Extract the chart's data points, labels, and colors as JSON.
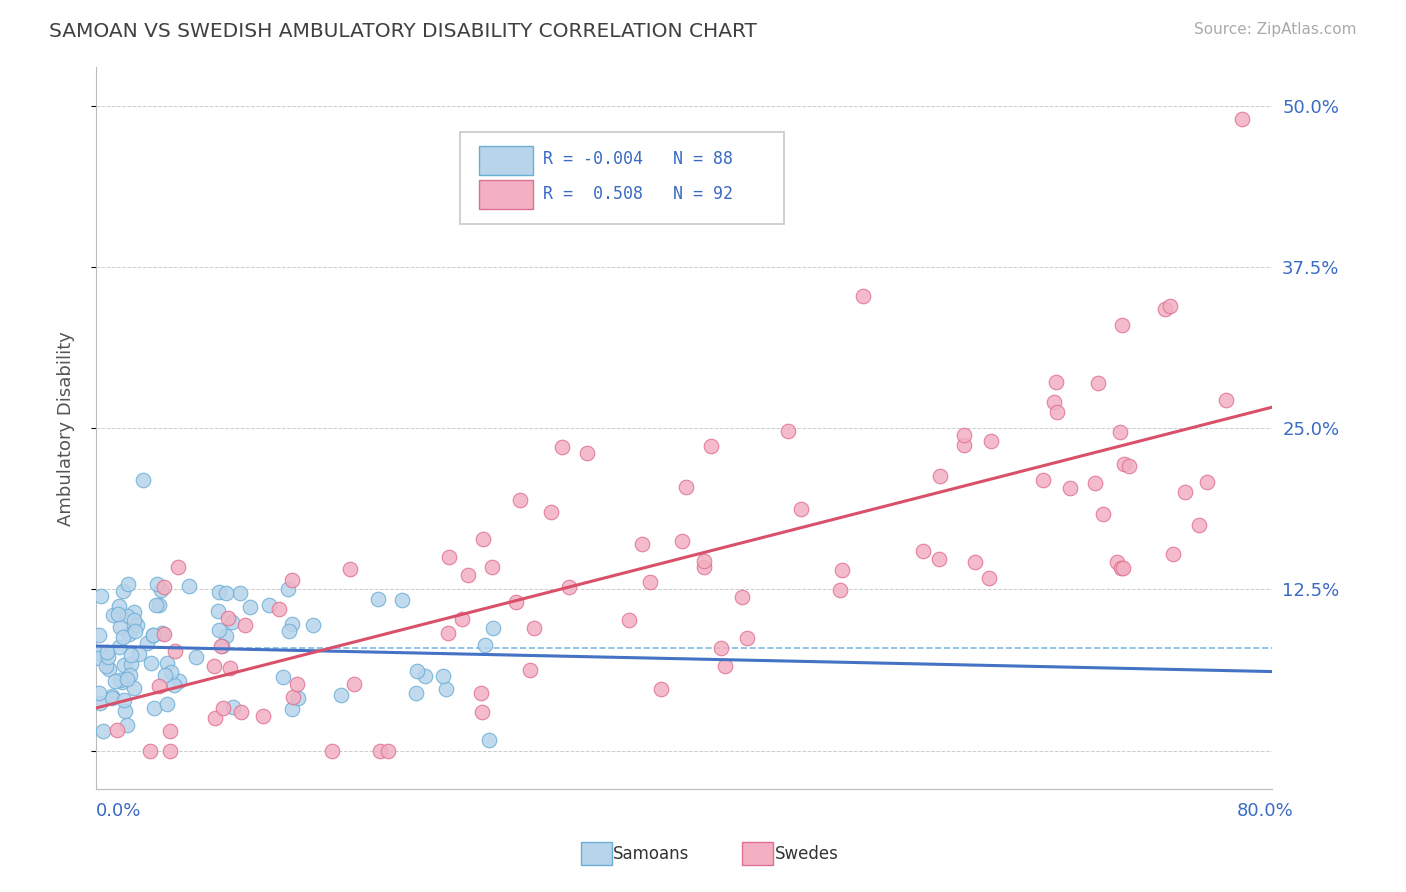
{
  "title": "SAMOAN VS SWEDISH AMBULATORY DISABILITY CORRELATION CHART",
  "source": "Source: ZipAtlas.com",
  "ylabel": "Ambulatory Disability",
  "xmin": 0.0,
  "xmax": 80.0,
  "ymin": -3.0,
  "ymax": 53.0,
  "yticks": [
    0.0,
    12.5,
    25.0,
    37.5,
    50.0
  ],
  "ytick_labels": [
    "",
    "12.5%",
    "25.0%",
    "37.5%",
    "50.0%"
  ],
  "samoan_R": -0.004,
  "samoan_N": 88,
  "swedish_R": 0.508,
  "swedish_N": 92,
  "samoan_color": "#b8d4ea",
  "swedish_color": "#f2b0c2",
  "samoan_edge_color": "#6aaed6",
  "swedish_edge_color": "#e07090",
  "samoan_line_color": "#4472c4",
  "swedish_line_color": "#d9506a",
  "ref_line_color": "#6aaed6",
  "background_color": "#ffffff",
  "grid_color": "#cccccc",
  "title_color": "#404040",
  "source_color": "#aaaaaa",
  "legend_R_color": "#3a6bc4"
}
